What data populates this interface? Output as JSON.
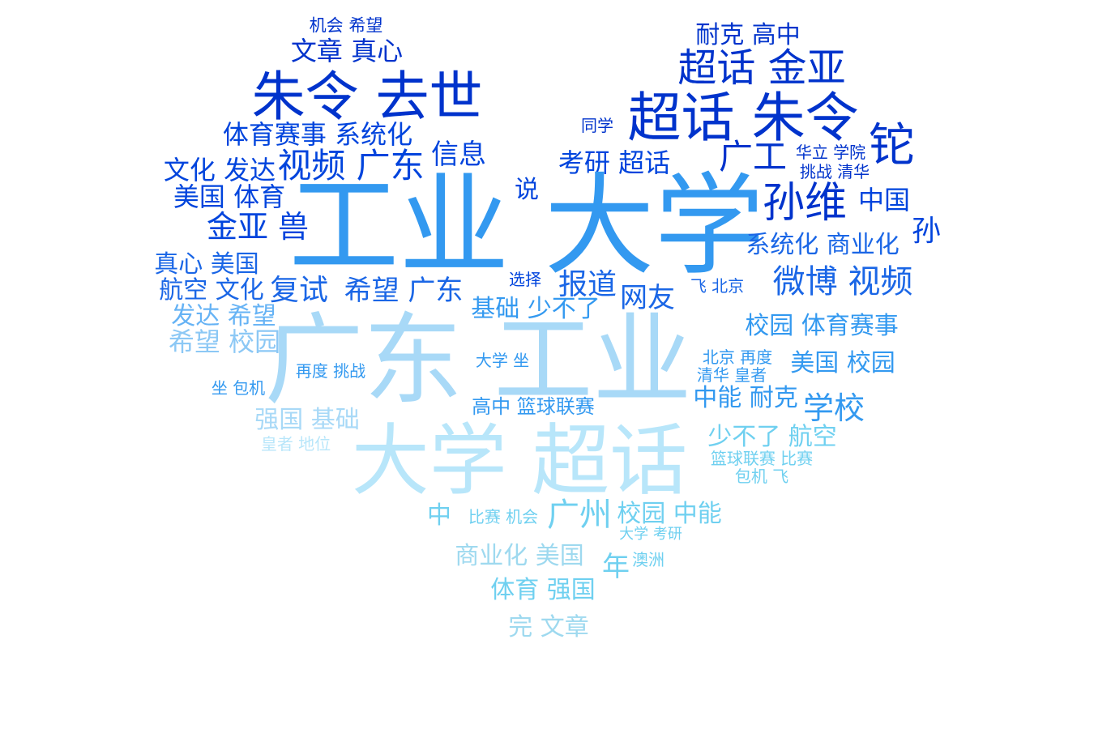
{
  "palette": {
    "c0": "#0033cc",
    "c1": "#0044dd",
    "c2": "#1a66e6",
    "c3": "#3399f0",
    "c4": "#66b3f5",
    "c5": "#8cc8f5",
    "c6": "#a8d9f7",
    "c7": "#b8e6fa",
    "c8": "#6fd0f0",
    "c9": "#9ed9ef"
  },
  "words": [
    {
      "text": "机会 希望",
      "color": "c0"
    },
    {
      "text": "文章 真心",
      "color": "c0"
    },
    {
      "text": "朱令 去世",
      "color": "c0"
    },
    {
      "text": "体育赛事 系统化",
      "color": "c1"
    },
    {
      "text": "文化 发达",
      "color": "c1"
    },
    {
      "text": "视频 广东",
      "color": "c1"
    },
    {
      "text": "信息",
      "color": "c1"
    },
    {
      "text": "美国 体育",
      "color": "c1"
    },
    {
      "text": "金亚 兽",
      "color": "c1"
    },
    {
      "text": "真心 美国",
      "color": "c2"
    },
    {
      "text": "航空 文化",
      "color": "c2"
    },
    {
      "text": "复试",
      "color": "c2"
    },
    {
      "text": "希望 广东",
      "color": "c2"
    },
    {
      "text": "发达 希望",
      "color": "c4"
    },
    {
      "text": "希望 校园",
      "color": "c5"
    },
    {
      "text": "耐克 高中",
      "color": "c0"
    },
    {
      "text": "超话 金亚",
      "color": "c0"
    },
    {
      "text": "超话 朱令",
      "color": "c0"
    },
    {
      "text": "同学",
      "color": "c0"
    },
    {
      "text": "铊",
      "color": "c0"
    },
    {
      "text": "广工",
      "color": "c0"
    },
    {
      "text": "华立 学院",
      "color": "c0"
    },
    {
      "text": "挑战 清华",
      "color": "c0"
    },
    {
      "text": "考研 超话",
      "color": "c1"
    },
    {
      "text": "说",
      "color": "c1"
    },
    {
      "text": "孙维",
      "color": "c0"
    },
    {
      "text": "中国",
      "color": "c1"
    },
    {
      "text": "孙",
      "color": "c1"
    },
    {
      "text": "工业 大学",
      "color": "c3"
    },
    {
      "text": "系统化 商业化",
      "color": "c2"
    },
    {
      "text": "微博 视频",
      "color": "c2"
    },
    {
      "text": "选择",
      "color": "c1"
    },
    {
      "text": "报道",
      "color": "c2"
    },
    {
      "text": "网友",
      "color": "c2"
    },
    {
      "text": "飞 北京",
      "color": "c2"
    },
    {
      "text": "基础 少不了",
      "color": "c3"
    },
    {
      "text": "校园 体育赛事",
      "color": "c3"
    },
    {
      "text": "广东 工业",
      "color": "c6"
    },
    {
      "text": "再度 挑战",
      "color": "c3"
    },
    {
      "text": "大学 坐",
      "color": "c3"
    },
    {
      "text": "北京 再度",
      "color": "c3"
    },
    {
      "text": "清华 皇者",
      "color": "c3"
    },
    {
      "text": "美国 校园",
      "color": "c3"
    },
    {
      "text": "坐 包机",
      "color": "c3"
    },
    {
      "text": "高中 篮球联赛",
      "color": "c3"
    },
    {
      "text": "中能 耐克",
      "color": "c3"
    },
    {
      "text": "学校",
      "color": "c3"
    },
    {
      "text": "强国 基础",
      "color": "c6"
    },
    {
      "text": "皇者 地位",
      "color": "c7"
    },
    {
      "text": "大学 超话",
      "color": "c7"
    },
    {
      "text": "少不了 航空",
      "color": "c8"
    },
    {
      "text": "篮球联赛 比赛",
      "color": "c8"
    },
    {
      "text": "包机 飞",
      "color": "c8"
    },
    {
      "text": "中",
      "color": "c8"
    },
    {
      "text": "比赛 机会",
      "color": "c8"
    },
    {
      "text": "广州",
      "color": "c8"
    },
    {
      "text": "校园 中能",
      "color": "c8"
    },
    {
      "text": "大学 考研",
      "color": "c8"
    },
    {
      "text": "商业化 美国",
      "color": "c9"
    },
    {
      "text": "年",
      "color": "c8"
    },
    {
      "text": "澳洲",
      "color": "c8"
    },
    {
      "text": "体育 强国",
      "color": "c8"
    },
    {
      "text": "完 文章",
      "color": "c9"
    }
  ]
}
